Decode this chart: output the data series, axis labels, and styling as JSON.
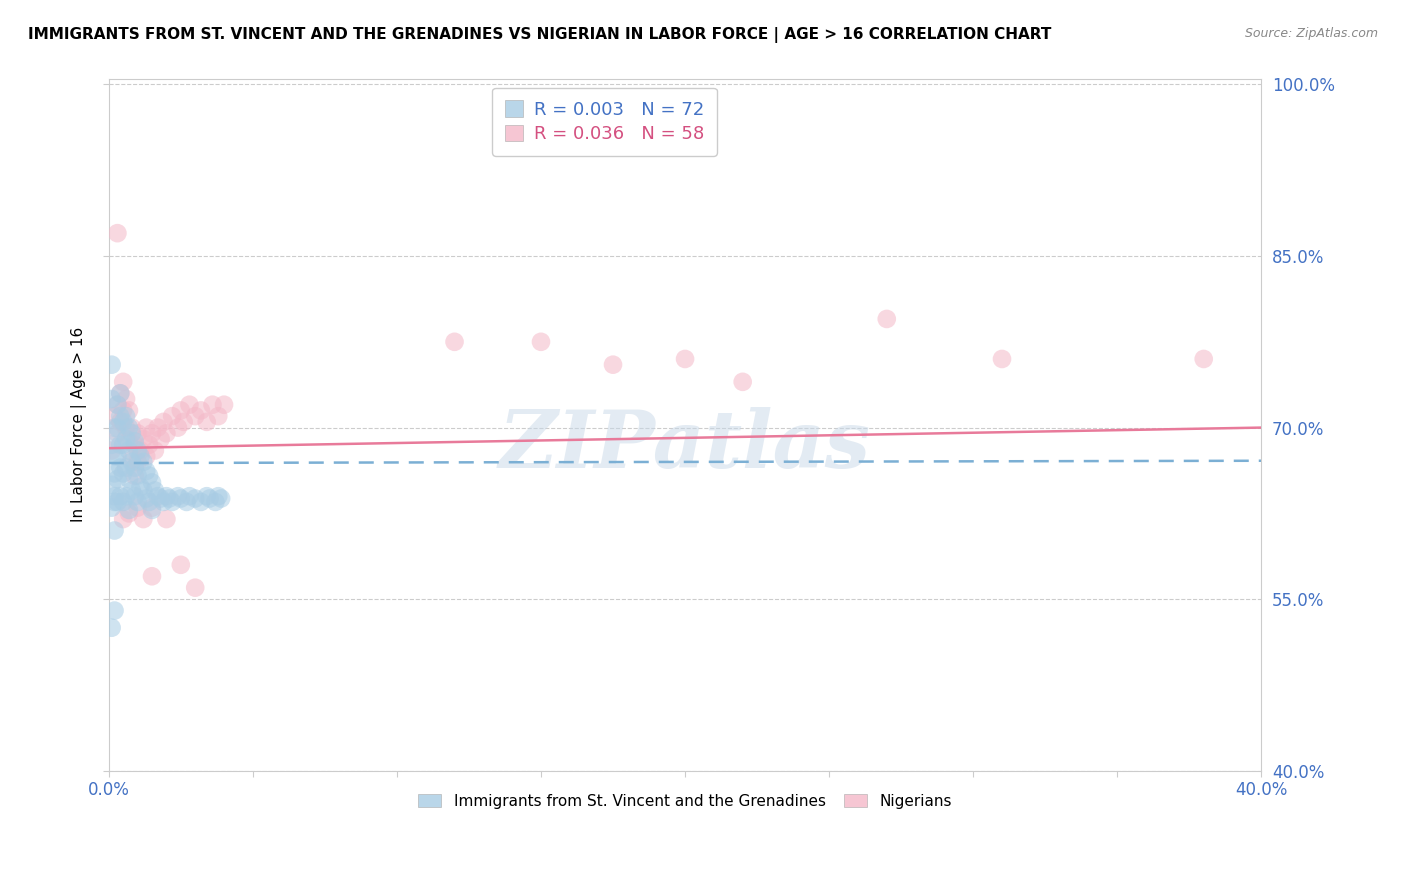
{
  "title": "IMMIGRANTS FROM ST. VINCENT AND THE GRENADINES VS NIGERIAN IN LABOR FORCE | AGE > 16 CORRELATION CHART",
  "source": "Source: ZipAtlas.com",
  "ylabel": "In Labor Force | Age > 16",
  "xlim": [
    0.0,
    0.4
  ],
  "ylim": [
    0.4,
    1.005
  ],
  "xticks": [
    0.0,
    0.05,
    0.1,
    0.15,
    0.2,
    0.25,
    0.3,
    0.35,
    0.4
  ],
  "xticklabels": [
    "0.0%",
    "",
    "",
    "",
    "",
    "",
    "",
    "",
    "40.0%"
  ],
  "yticks": [
    0.4,
    0.55,
    0.7,
    0.85,
    1.0
  ],
  "yticklabels": [
    "40.0%",
    "55.0%",
    "70.0%",
    "85.0%",
    "100.0%"
  ],
  "blue_color": "#a8cce4",
  "pink_color": "#f4b8c8",
  "blue_line_color": "#7bafd4",
  "pink_line_color": "#e87a9a",
  "legend_blue_label": "R = 0.003   N = 72",
  "legend_pink_label": "R = 0.036   N = 58",
  "legend_blue_series": "Immigrants from St. Vincent and the Grenadines",
  "legend_pink_series": "Nigerians",
  "watermark": "ZIPatlas",
  "blue_x": [
    0.001,
    0.001,
    0.001,
    0.001,
    0.002,
    0.002,
    0.002,
    0.002,
    0.002,
    0.003,
    0.003,
    0.003,
    0.003,
    0.003,
    0.004,
    0.004,
    0.004,
    0.004,
    0.004,
    0.005,
    0.005,
    0.005,
    0.005,
    0.006,
    0.006,
    0.006,
    0.006,
    0.007,
    0.007,
    0.007,
    0.007,
    0.008,
    0.008,
    0.008,
    0.009,
    0.009,
    0.009,
    0.01,
    0.01,
    0.01,
    0.011,
    0.011,
    0.012,
    0.012,
    0.013,
    0.013,
    0.014,
    0.014,
    0.015,
    0.015,
    0.016,
    0.017,
    0.018,
    0.019,
    0.02,
    0.021,
    0.022,
    0.024,
    0.025,
    0.027,
    0.028,
    0.03,
    0.032,
    0.034,
    0.035,
    0.037,
    0.038,
    0.039,
    0.002,
    0.001,
    0.002,
    0.001
  ],
  "blue_y": [
    0.755,
    0.725,
    0.685,
    0.65,
    0.7,
    0.675,
    0.66,
    0.64,
    0.61,
    0.72,
    0.7,
    0.675,
    0.655,
    0.635,
    0.73,
    0.71,
    0.685,
    0.665,
    0.64,
    0.705,
    0.685,
    0.66,
    0.635,
    0.71,
    0.69,
    0.665,
    0.64,
    0.7,
    0.68,
    0.655,
    0.628,
    0.695,
    0.67,
    0.645,
    0.688,
    0.665,
    0.64,
    0.68,
    0.658,
    0.635,
    0.675,
    0.648,
    0.67,
    0.645,
    0.662,
    0.638,
    0.658,
    0.635,
    0.652,
    0.628,
    0.645,
    0.64,
    0.638,
    0.635,
    0.64,
    0.638,
    0.635,
    0.64,
    0.638,
    0.635,
    0.64,
    0.638,
    0.635,
    0.64,
    0.638,
    0.635,
    0.64,
    0.638,
    0.54,
    0.525,
    0.635,
    0.63
  ],
  "pink_x": [
    0.001,
    0.002,
    0.003,
    0.003,
    0.004,
    0.004,
    0.005,
    0.005,
    0.006,
    0.006,
    0.007,
    0.007,
    0.008,
    0.008,
    0.009,
    0.009,
    0.01,
    0.01,
    0.011,
    0.012,
    0.013,
    0.013,
    0.014,
    0.015,
    0.016,
    0.017,
    0.018,
    0.019,
    0.02,
    0.022,
    0.024,
    0.025,
    0.026,
    0.028,
    0.03,
    0.032,
    0.034,
    0.036,
    0.038,
    0.04,
    0.015,
    0.02,
    0.025,
    0.03,
    0.175,
    0.22,
    0.27,
    0.31,
    0.38,
    0.12,
    0.15,
    0.2,
    0.003,
    0.005,
    0.007,
    0.01,
    0.012,
    0.015
  ],
  "pink_y": [
    0.68,
    0.71,
    0.695,
    0.72,
    0.705,
    0.73,
    0.715,
    0.74,
    0.7,
    0.725,
    0.688,
    0.715,
    0.672,
    0.7,
    0.658,
    0.685,
    0.67,
    0.695,
    0.68,
    0.69,
    0.675,
    0.7,
    0.685,
    0.695,
    0.68,
    0.7,
    0.69,
    0.705,
    0.695,
    0.71,
    0.7,
    0.715,
    0.705,
    0.72,
    0.71,
    0.715,
    0.705,
    0.72,
    0.71,
    0.72,
    0.63,
    0.62,
    0.58,
    0.56,
    0.755,
    0.74,
    0.795,
    0.76,
    0.76,
    0.775,
    0.775,
    0.76,
    0.87,
    0.62,
    0.625,
    0.63,
    0.62,
    0.57
  ],
  "blue_trend_x0": 0.0,
  "blue_trend_x1": 0.4,
  "blue_trend_y0": 0.669,
  "blue_trend_y1": 0.671,
  "pink_trend_x0": 0.0,
  "pink_trend_x1": 0.4,
  "pink_trend_y0": 0.682,
  "pink_trend_y1": 0.7
}
